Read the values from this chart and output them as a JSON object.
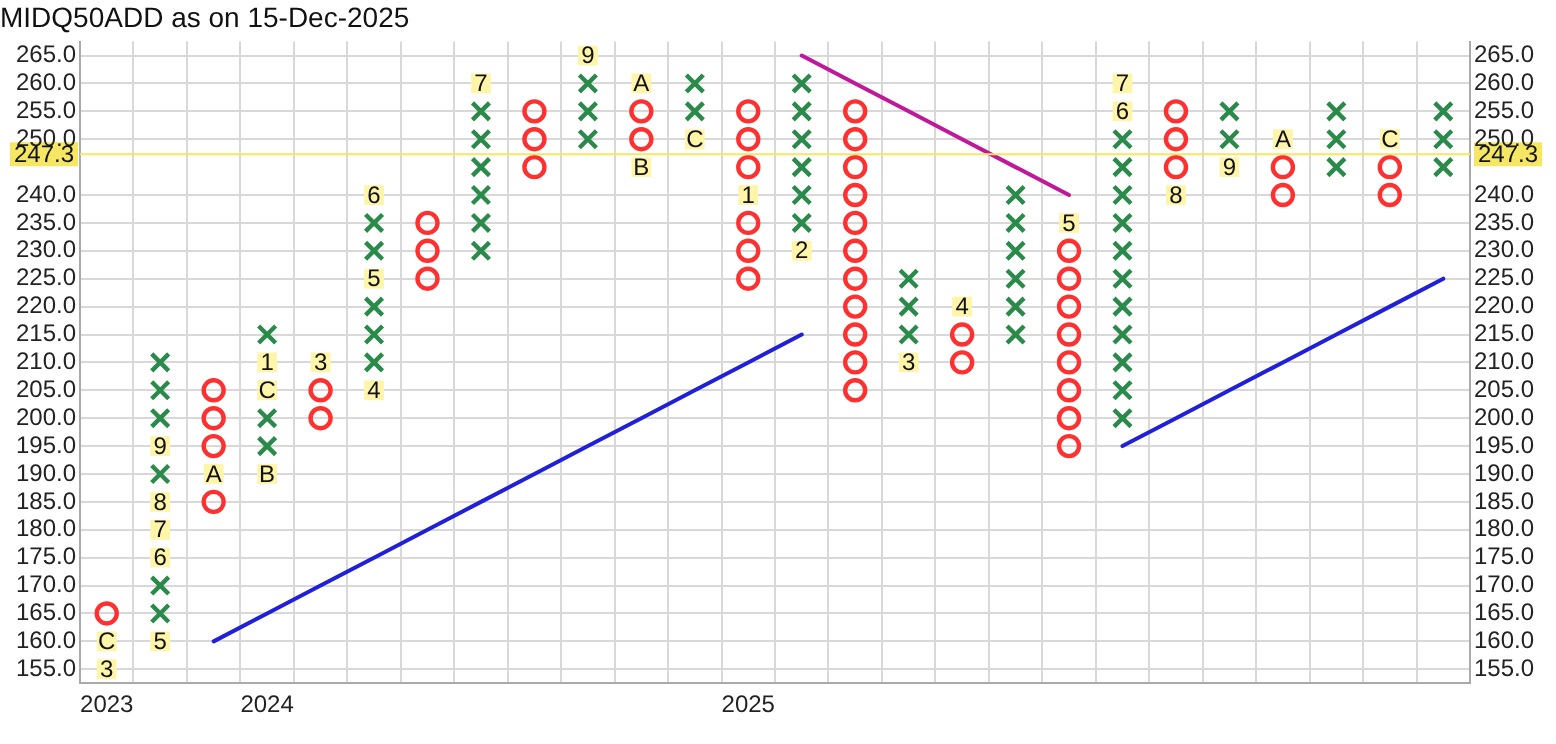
{
  "chart_data": {
    "type": "scatter",
    "title": "MIDQ50ADD as on 15-Dec-2025",
    "categories": [
      "2023",
      null,
      null,
      "2024",
      null,
      null,
      null,
      null,
      null,
      null,
      null,
      null,
      "2025",
      null,
      null,
      null,
      null,
      null,
      null,
      null,
      null,
      null,
      null,
      null,
      null,
      null
    ],
    "series": [
      {
        "type": "scatter",
        "marker": "cross",
        "color": "#2a8a4a",
        "values": [
          null,
          null,
          null,
          null,
          null,
          null,
          null,
          230,
          null,
          250,
          null,
          null,
          null,
          null,
          null,
          null,
          null,
          215,
          null,
          200,
          null,
          null,
          null,
          245,
          null,
          245
        ]
      },
      {
        "type": "scatter",
        "marker": "cross",
        "color": "#2a8a4a",
        "values": [
          null,
          165,
          null,
          195,
          null,
          210,
          null,
          235,
          null,
          255,
          null,
          255,
          null,
          235,
          null,
          215,
          null,
          220,
          null,
          205,
          null,
          250,
          null,
          250,
          null,
          250
        ]
      },
      {
        "type": "scatter",
        "marker": "cross",
        "color": "#2a8a4a",
        "values": [
          null,
          170,
          null,
          200,
          null,
          215,
          null,
          240,
          null,
          260,
          null,
          260,
          null,
          240,
          null,
          220,
          null,
          225,
          null,
          210,
          null,
          255,
          null,
          255,
          null,
          255
        ]
      },
      {
        "type": "scatter",
        "marker": "cross",
        "color": "#2a8a4a",
        "values": [
          null,
          null,
          null,
          null,
          null,
          220,
          null,
          245,
          null,
          null,
          null,
          null,
          null,
          245,
          null,
          225,
          null,
          230,
          null,
          215,
          null,
          null,
          null,
          null,
          null,
          null
        ]
      },
      {
        "type": "scatter",
        "marker": "cross",
        "color": "#2a8a4a",
        "values": [
          null,
          null,
          null,
          null,
          null,
          null,
          null,
          250,
          null,
          null,
          null,
          null,
          null,
          250,
          null,
          null,
          null,
          235,
          null,
          220,
          null,
          null,
          null,
          null,
          null,
          null
        ]
      },
      {
        "type": "scatter",
        "marker": "cross",
        "color": "#2a8a4a",
        "values": [
          null,
          null,
          null,
          215,
          null,
          230,
          null,
          255,
          null,
          null,
          null,
          null,
          null,
          255,
          null,
          null,
          null,
          240,
          null,
          225,
          null,
          null,
          null,
          null,
          null,
          null
        ]
      },
      {
        "type": "scatter",
        "marker": "cross",
        "color": "#2a8a4a",
        "values": [
          null,
          190,
          null,
          null,
          null,
          235,
          null,
          null,
          null,
          null,
          null,
          null,
          null,
          260,
          null,
          null,
          null,
          null,
          null,
          230,
          null,
          null,
          null,
          null,
          null,
          null
        ]
      },
      {
        "type": "scatter",
        "marker": "cross",
        "color": "#2a8a4a",
        "values": [
          null,
          null,
          null,
          null,
          null,
          null,
          null,
          null,
          null,
          null,
          null,
          null,
          null,
          null,
          null,
          null,
          null,
          null,
          null,
          235,
          null,
          null,
          null,
          null,
          null,
          null
        ]
      },
      {
        "type": "scatter",
        "marker": "cross",
        "color": "#2a8a4a",
        "values": [
          null,
          200,
          null,
          null,
          null,
          null,
          null,
          null,
          null,
          null,
          null,
          null,
          null,
          null,
          null,
          null,
          null,
          null,
          null,
          240,
          null,
          null,
          null,
          null,
          null,
          null
        ]
      },
      {
        "type": "scatter",
        "marker": "cross",
        "color": "#2a8a4a",
        "values": [
          null,
          205,
          null,
          null,
          null,
          null,
          null,
          null,
          null,
          null,
          null,
          null,
          null,
          null,
          null,
          null,
          null,
          null,
          null,
          245,
          null,
          null,
          null,
          null,
          null,
          null
        ]
      },
      {
        "type": "scatter",
        "marker": "cross",
        "color": "#2a8a4a",
        "values": [
          null,
          210,
          null,
          null,
          null,
          null,
          null,
          null,
          null,
          null,
          null,
          null,
          null,
          null,
          null,
          null,
          null,
          null,
          null,
          250,
          null,
          null,
          null,
          null,
          null,
          null
        ]
      },
      {
        "type": "scatter",
        "marker": "circle",
        "color": "#ff3030",
        "values": [
          null,
          null,
          185,
          null,
          200,
          null,
          225,
          null,
          245,
          null,
          null,
          null,
          225,
          null,
          205,
          null,
          210,
          null,
          195,
          null,
          null,
          null,
          240,
          null,
          240,
          null
        ]
      },
      {
        "type": "scatter",
        "marker": "circle",
        "color": "#ff3030",
        "values": [
          null,
          null,
          null,
          null,
          205,
          null,
          230,
          null,
          250,
          null,
          250,
          null,
          230,
          null,
          210,
          null,
          215,
          null,
          200,
          null,
          245,
          null,
          245,
          null,
          245,
          null
        ]
      },
      {
        "type": "scatter",
        "marker": "circle",
        "color": "#ff3030",
        "values": [
          165,
          null,
          195,
          null,
          null,
          null,
          235,
          null,
          255,
          null,
          255,
          null,
          235,
          null,
          215,
          null,
          null,
          null,
          205,
          null,
          250,
          null,
          null,
          null,
          null,
          null
        ]
      },
      {
        "type": "scatter",
        "marker": "circle",
        "color": "#ff3030",
        "values": [
          null,
          null,
          200,
          null,
          null,
          null,
          null,
          null,
          null,
          null,
          null,
          null,
          null,
          null,
          220,
          null,
          null,
          null,
          210,
          null,
          255,
          null,
          null,
          null,
          null,
          null
        ]
      },
      {
        "type": "scatter",
        "marker": "circle",
        "color": "#ff3030",
        "values": [
          null,
          null,
          205,
          null,
          null,
          null,
          null,
          null,
          null,
          null,
          null,
          null,
          245,
          null,
          225,
          null,
          null,
          null,
          215,
          null,
          null,
          null,
          null,
          null,
          null,
          null
        ]
      },
      {
        "type": "scatter",
        "marker": "circle",
        "color": "#ff3030",
        "values": [
          null,
          null,
          null,
          null,
          null,
          null,
          null,
          null,
          null,
          null,
          null,
          null,
          250,
          null,
          230,
          null,
          null,
          null,
          220,
          null,
          null,
          null,
          null,
          null,
          null,
          null
        ]
      },
      {
        "type": "scatter",
        "marker": "circle",
        "color": "#ff3030",
        "values": [
          null,
          null,
          null,
          null,
          null,
          null,
          null,
          null,
          null,
          null,
          null,
          null,
          255,
          null,
          235,
          null,
          null,
          null,
          225,
          null,
          null,
          null,
          null,
          null,
          null,
          null
        ]
      },
      {
        "type": "scatter",
        "marker": "circle",
        "color": "#ff3030",
        "values": [
          null,
          null,
          null,
          null,
          null,
          null,
          null,
          null,
          null,
          null,
          null,
          null,
          null,
          null,
          240,
          null,
          null,
          null,
          230,
          null,
          null,
          null,
          null,
          null,
          null,
          null
        ]
      },
      {
        "type": "scatter",
        "marker": "circle",
        "color": "#ff3030",
        "values": [
          null,
          null,
          null,
          null,
          null,
          null,
          null,
          null,
          null,
          null,
          null,
          null,
          null,
          null,
          245,
          null,
          null,
          null,
          null,
          null,
          null,
          null,
          null,
          null,
          null,
          null
        ]
      },
      {
        "type": "scatter",
        "marker": "circle",
        "color": "#ff3030",
        "values": [
          null,
          null,
          null,
          null,
          null,
          null,
          null,
          null,
          null,
          null,
          null,
          null,
          null,
          null,
          250,
          null,
          null,
          null,
          null,
          null,
          null,
          null,
          null,
          null,
          null,
          null
        ]
      },
      {
        "type": "scatter",
        "marker": "circle",
        "color": "#ff3030",
        "values": [
          null,
          null,
          null,
          null,
          null,
          null,
          null,
          null,
          null,
          null,
          null,
          null,
          null,
          null,
          255,
          null,
          null,
          null,
          null,
          null,
          null,
          null,
          null,
          null,
          null,
          null
        ]
      },
      {
        "type": "scatter",
        "marker": "square",
        "name": "1",
        "color": "#fff5a8",
        "values": [
          null,
          null,
          null,
          210,
          null,
          null,
          null,
          null,
          null,
          null,
          null,
          null,
          240,
          null,
          null,
          null,
          null,
          null,
          null,
          null,
          null,
          null,
          null,
          null,
          null,
          null
        ]
      },
      {
        "type": "scatter",
        "marker": "square",
        "name": "2",
        "color": "#fff5a8",
        "values": [
          null,
          null,
          null,
          null,
          null,
          null,
          null,
          null,
          null,
          null,
          null,
          null,
          null,
          230,
          null,
          null,
          null,
          null,
          null,
          null,
          null,
          null,
          null,
          null,
          null,
          null
        ]
      },
      {
        "type": "scatter",
        "marker": "square",
        "name": "3",
        "color": "#fff5a8",
        "values": [
          155,
          null,
          null,
          null,
          210,
          null,
          null,
          null,
          null,
          null,
          null,
          null,
          null,
          null,
          null,
          210,
          null,
          null,
          null,
          null,
          null,
          null,
          null,
          null,
          null,
          null
        ]
      },
      {
        "type": "scatter",
        "marker": "square",
        "name": "4",
        "color": "#fff5a8",
        "values": [
          null,
          null,
          null,
          null,
          null,
          205,
          null,
          null,
          null,
          null,
          null,
          null,
          null,
          null,
          null,
          null,
          220,
          null,
          null,
          null,
          null,
          null,
          null,
          null,
          null,
          null
        ]
      },
      {
        "type": "scatter",
        "marker": "square",
        "name": "5",
        "color": "#fff5a8",
        "values": [
          null,
          160,
          null,
          null,
          null,
          225,
          null,
          null,
          null,
          null,
          null,
          null,
          null,
          null,
          null,
          null,
          null,
          null,
          235,
          null,
          null,
          null,
          null,
          null,
          null,
          null
        ]
      },
      {
        "type": "scatter",
        "marker": "square",
        "name": "6",
        "color": "#fff5a8",
        "values": [
          null,
          175,
          null,
          null,
          null,
          240,
          null,
          null,
          null,
          null,
          null,
          null,
          null,
          null,
          null,
          null,
          null,
          null,
          null,
          255,
          null,
          null,
          null,
          null,
          null,
          null
        ]
      },
      {
        "type": "scatter",
        "marker": "square",
        "name": "7",
        "color": "#fff5a8",
        "values": [
          null,
          180,
          null,
          null,
          null,
          null,
          null,
          260,
          null,
          null,
          null,
          null,
          null,
          null,
          null,
          null,
          null,
          null,
          null,
          260,
          null,
          null,
          null,
          null,
          null,
          null
        ]
      },
      {
        "type": "scatter",
        "marker": "square",
        "name": "8",
        "color": "#fff5a8",
        "values": [
          null,
          185,
          null,
          null,
          null,
          null,
          null,
          null,
          null,
          null,
          null,
          null,
          null,
          null,
          null,
          null,
          null,
          null,
          null,
          null,
          240,
          null,
          null,
          null,
          null,
          null
        ]
      },
      {
        "type": "scatter",
        "marker": "square",
        "name": "9",
        "color": "#fff5a8",
        "values": [
          null,
          195,
          null,
          null,
          null,
          null,
          null,
          null,
          null,
          265,
          null,
          null,
          null,
          null,
          null,
          null,
          null,
          null,
          null,
          null,
          null,
          245,
          null,
          null,
          null,
          null
        ]
      },
      {
        "type": "scatter",
        "marker": "square",
        "name": "A",
        "color": "#fff5a8",
        "values": [
          null,
          null,
          190,
          null,
          null,
          null,
          null,
          null,
          null,
          null,
          260,
          null,
          null,
          null,
          null,
          null,
          null,
          null,
          null,
          null,
          null,
          null,
          250,
          null,
          null,
          null
        ]
      },
      {
        "type": "scatter",
        "marker": "square",
        "name": "B",
        "color": "#fff5a8",
        "values": [
          null,
          null,
          null,
          190,
          null,
          null,
          null,
          null,
          null,
          null,
          245,
          null,
          null,
          null,
          null,
          null,
          null,
          null,
          null,
          null,
          null,
          null,
          null,
          null,
          null,
          null
        ]
      },
      {
        "type": "scatter",
        "marker": "square",
        "name": "C",
        "color": "#fff5a8",
        "values": [
          160,
          null,
          null,
          205,
          null,
          null,
          null,
          null,
          null,
          null,
          null,
          250,
          null,
          null,
          null,
          null,
          null,
          null,
          null,
          null,
          null,
          null,
          null,
          null,
          250,
          null
        ]
      },
      {
        "type": "line",
        "color": "#2020d8",
        "values": [
          null,
          null,
          160,
          165,
          170,
          175,
          180,
          185,
          190,
          195,
          200,
          205,
          210,
          215,
          null,
          null,
          null,
          null,
          null,
          null,
          null,
          null,
          null,
          null,
          null,
          null
        ]
      },
      {
        "type": "line",
        "color": "#c0189a",
        "values": [
          null,
          null,
          null,
          null,
          null,
          null,
          null,
          null,
          null,
          null,
          null,
          null,
          null,
          265,
          260,
          255,
          250,
          245,
          240,
          null,
          null,
          null,
          null,
          null,
          null,
          null
        ]
      },
      {
        "type": "line",
        "color": "#2020d8",
        "values": [
          null,
          null,
          null,
          null,
          null,
          null,
          null,
          null,
          null,
          null,
          null,
          null,
          null,
          null,
          null,
          null,
          null,
          null,
          null,
          195,
          200,
          205,
          210,
          215,
          220,
          225
        ]
      }
    ],
    "ref_lines": [
      {
        "axis": "y",
        "value": 247.3,
        "label": "247.3",
        "color": "#f5e663"
      }
    ],
    "ylim": [
      152.5,
      267.5
    ],
    "yticks": [
      {
        "value": 155,
        "label": "155.0"
      },
      {
        "value": 160,
        "label": "160.0"
      },
      {
        "value": 165,
        "label": "165.0"
      },
      {
        "value": 170,
        "label": "170.0"
      },
      {
        "value": 175,
        "label": "175.0"
      },
      {
        "value": 180,
        "label": "180.0"
      },
      {
        "value": 185,
        "label": "185.0"
      },
      {
        "value": 190,
        "label": "190.0"
      },
      {
        "value": 195,
        "label": "195.0"
      },
      {
        "value": 200,
        "label": "200.0"
      },
      {
        "value": 205,
        "label": "205.0"
      },
      {
        "value": 210,
        "label": "210.0"
      },
      {
        "value": 215,
        "label": "215.0"
      },
      {
        "value": 220,
        "label": "220.0"
      },
      {
        "value": 225,
        "label": "225.0"
      },
      {
        "value": 230,
        "label": "230.0"
      },
      {
        "value": 235,
        "label": "235.0"
      },
      {
        "value": 240,
        "label": "240.0"
      },
      {
        "value": 250,
        "label": "250.0"
      },
      {
        "value": 255,
        "label": "255.0"
      },
      {
        "value": 260,
        "label": "260.0"
      },
      {
        "value": 265,
        "label": "265.0"
      }
    ],
    "y2lim": [
      152.5,
      267.5
    ],
    "y2ticks": [
      {
        "value": 155,
        "label": "155.0"
      },
      {
        "value": 160,
        "label": "160.0"
      },
      {
        "value": 165,
        "label": "165.0"
      },
      {
        "value": 170,
        "label": "170.0"
      },
      {
        "value": 175,
        "label": "175.0"
      },
      {
        "value": 180,
        "label": "180.0"
      },
      {
        "value": 185,
        "label": "185.0"
      },
      {
        "value": 190,
        "label": "190.0"
      },
      {
        "value": 195,
        "label": "195.0"
      },
      {
        "value": 200,
        "label": "200.0"
      },
      {
        "value": 205,
        "label": "205.0"
      },
      {
        "value": 210,
        "label": "210.0"
      },
      {
        "value": 215,
        "label": "215.0"
      },
      {
        "value": 220,
        "label": "220.0"
      },
      {
        "value": 225,
        "label": "225.0"
      },
      {
        "value": 230,
        "label": "230.0"
      },
      {
        "value": 235,
        "label": "235.0"
      },
      {
        "value": 240,
        "label": "240.0"
      },
      {
        "value": 250,
        "label": "250.0"
      },
      {
        "value": 255,
        "label": "255.0"
      },
      {
        "value": 260,
        "label": "260.0"
      },
      {
        "value": 265,
        "label": "265.0"
      }
    ],
    "grid": true,
    "legend": false
  }
}
